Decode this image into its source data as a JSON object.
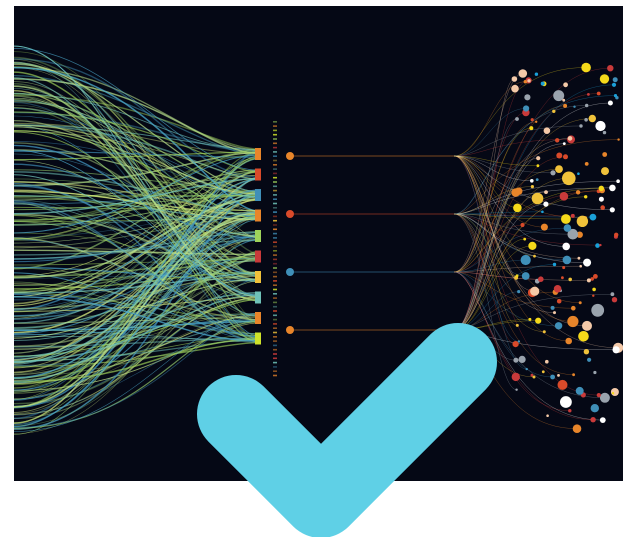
{
  "artwork": {
    "background_color": "#050815",
    "strand_colors": [
      "#9fd35a",
      "#6fc2b8",
      "#cfe27a",
      "#4aa7c9",
      "#8fc46a",
      "#b8e08a",
      "#3f8fb8"
    ],
    "bundle_colors": [
      "#e8852a",
      "#d94a2a",
      "#3f8fb8",
      "#e8852a",
      "#9fd35a",
      "#c93a3a",
      "#f0c23a",
      "#6fc2b8",
      "#e8852a",
      "#cfe22a"
    ],
    "hub_colors": [
      "#e8852a",
      "#d94a2a",
      "#3f8fb8",
      "#e8852a"
    ],
    "dot_colors": [
      "#ffffff",
      "#e8852a",
      "#d94a2a",
      "#3f8fb8",
      "#f0c23a",
      "#f4c9a8",
      "#9aa3ad",
      "#1aa0d8",
      "#f5d91a",
      "#c93a3a"
    ]
  },
  "check_icon": {
    "color": "#5fd0e6",
    "icon": "checkmark-icon"
  }
}
